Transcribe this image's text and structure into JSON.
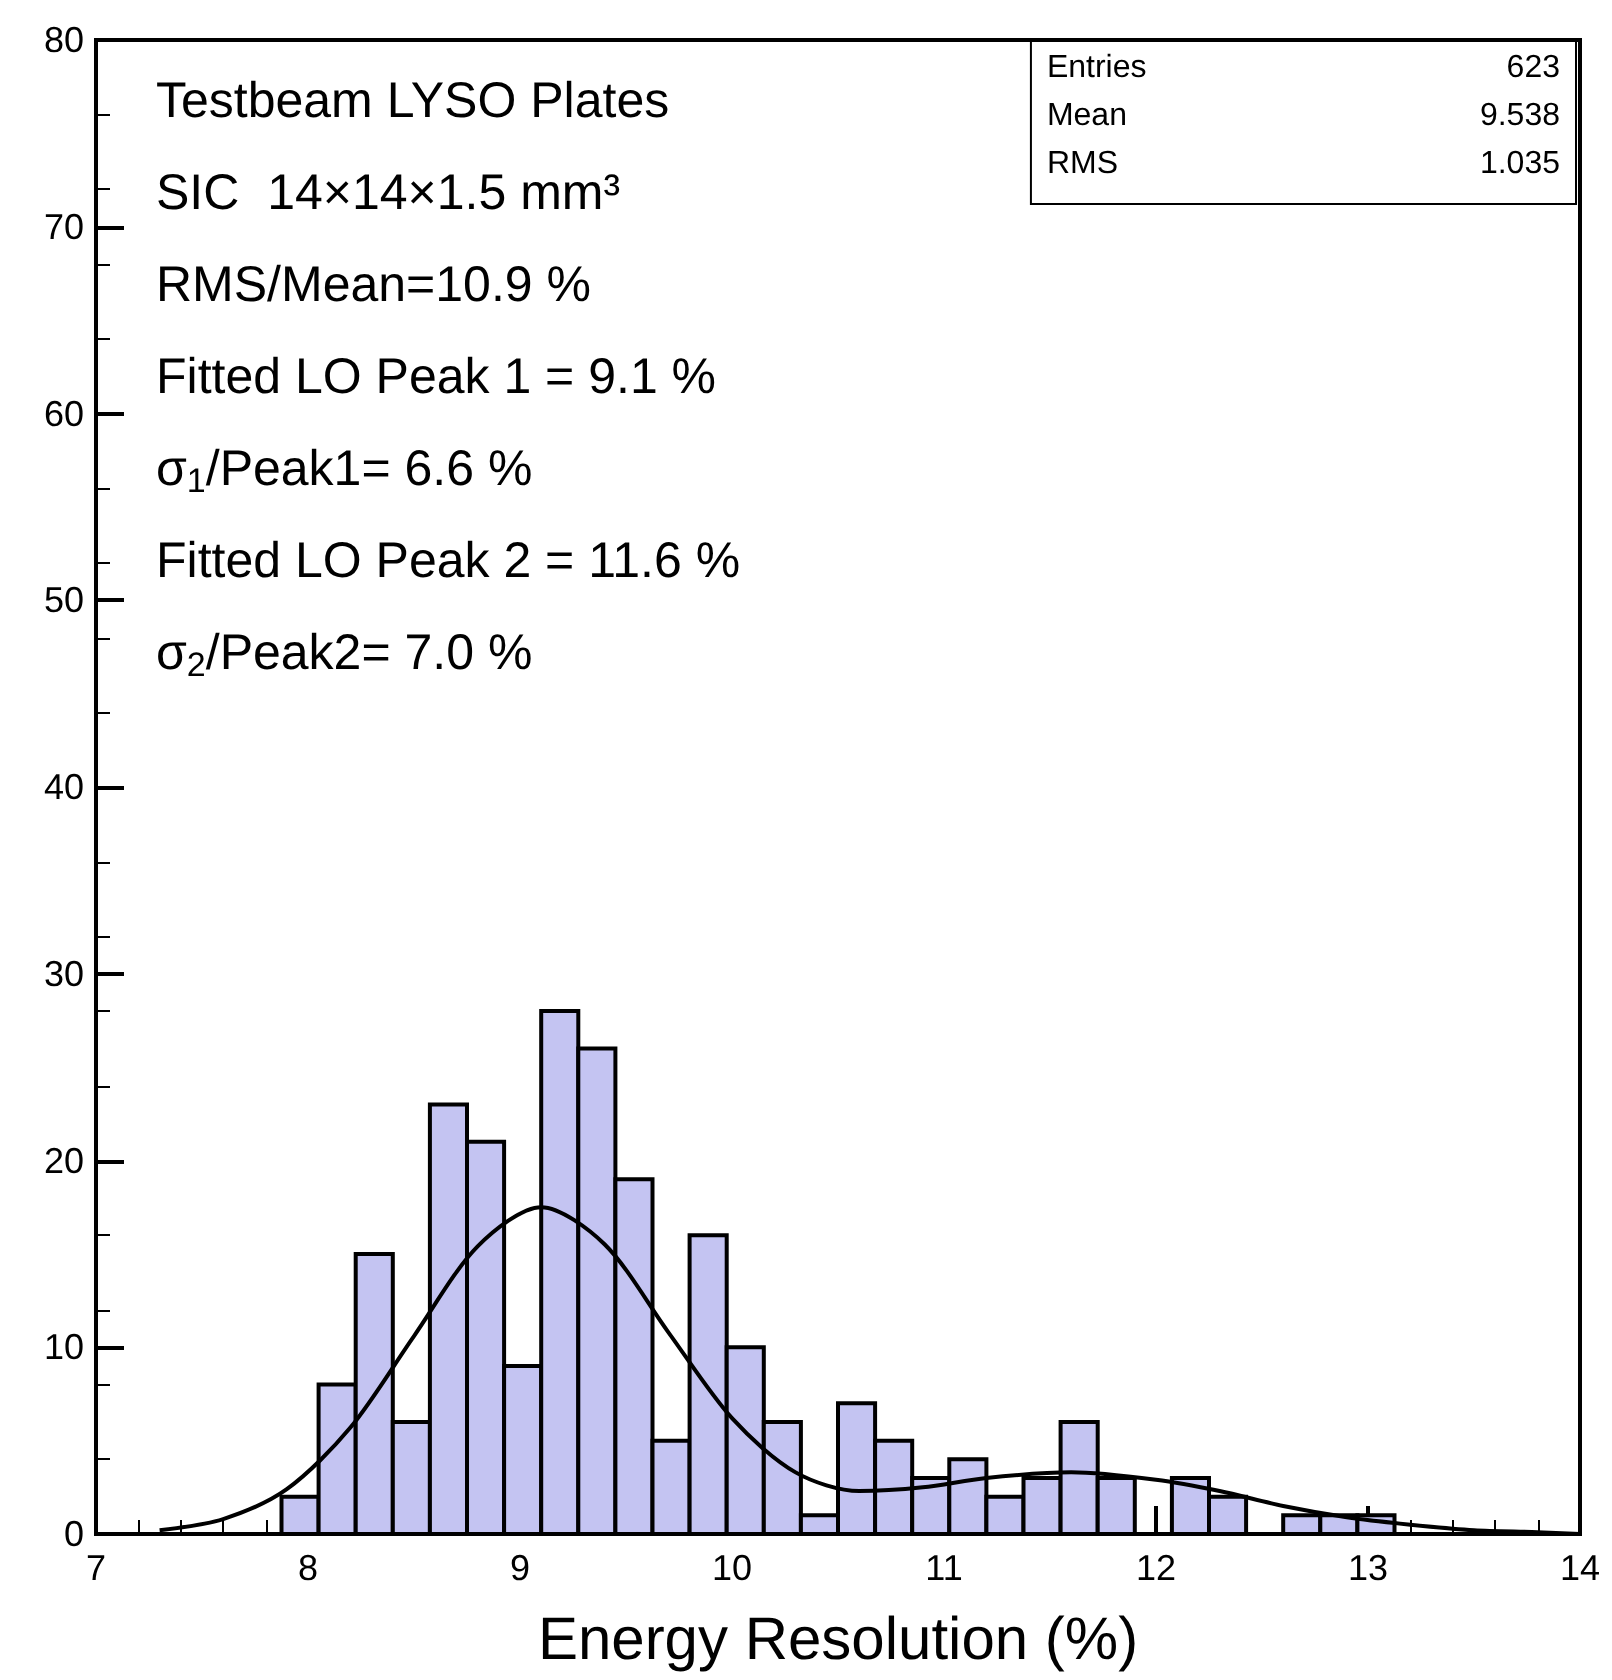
{
  "chart_data": {
    "type": "histogram",
    "xlabel": "Energy Resolution (%)",
    "bins": [
      7.875,
      8.05,
      8.225,
      8.4,
      8.575,
      8.75,
      8.925,
      9.1,
      9.275,
      9.45,
      9.625,
      9.8,
      9.975,
      10.15,
      10.325,
      10.5,
      10.675,
      10.85,
      11.025,
      11.2,
      11.375,
      11.55,
      11.725,
      11.9,
      12.075,
      12.25,
      12.425,
      12.6,
      12.775,
      12.95,
      13.125
    ],
    "values": [
      2,
      8,
      15,
      6,
      23,
      21,
      9,
      28,
      26,
      19,
      5,
      16,
      10,
      6,
      1,
      7,
      5,
      3,
      4,
      2,
      3,
      6,
      3,
      0,
      3,
      2,
      0,
      1,
      1,
      1
    ],
    "color": "#c4c4f2",
    "series": [
      {
        "type": "line",
        "color": "#000000",
        "x": [
          7.3,
          7.6,
          7.9,
          8.2,
          8.5,
          8.8,
          9.1,
          9.4,
          9.7,
          10.0,
          10.3,
          10.6,
          10.9,
          11.2,
          11.6,
          12.0,
          12.3,
          12.6,
          12.9,
          13.2,
          13.5,
          13.8,
          14.0
        ],
        "values": [
          0.2,
          0.8,
          2.4,
          5.7,
          10.6,
          15.4,
          17.5,
          15.5,
          10.8,
          6.2,
          3.3,
          2.3,
          2.5,
          3.0,
          3.3,
          2.9,
          2.3,
          1.5,
          0.9,
          0.5,
          0.2,
          0.1,
          0.0
        ]
      }
    ],
    "xlim": [
      7,
      14
    ],
    "xticks": [
      7,
      8,
      9,
      10,
      11,
      12,
      13,
      14
    ],
    "ylim": [
      0,
      80
    ],
    "yticks": [
      0,
      10,
      20,
      30,
      40,
      50,
      60,
      70,
      80
    ],
    "marker": "none",
    "annotations": [
      "Testbeam LYSO Plates",
      "SIC  14×14×1.5 mm³",
      "RMS/Mean=10.9 %",
      "Fitted LO Peak 1 = 9.1 %",
      "σ$_{1}$/Peak1= 6.6 %",
      "Fitted LO Peak 2 = 11.6 %",
      "σ$_{2}$/Peak2= 7.0 %",
      "Entries\t623",
      "Mean\t9.538",
      "RMS\t1.035"
    ]
  }
}
